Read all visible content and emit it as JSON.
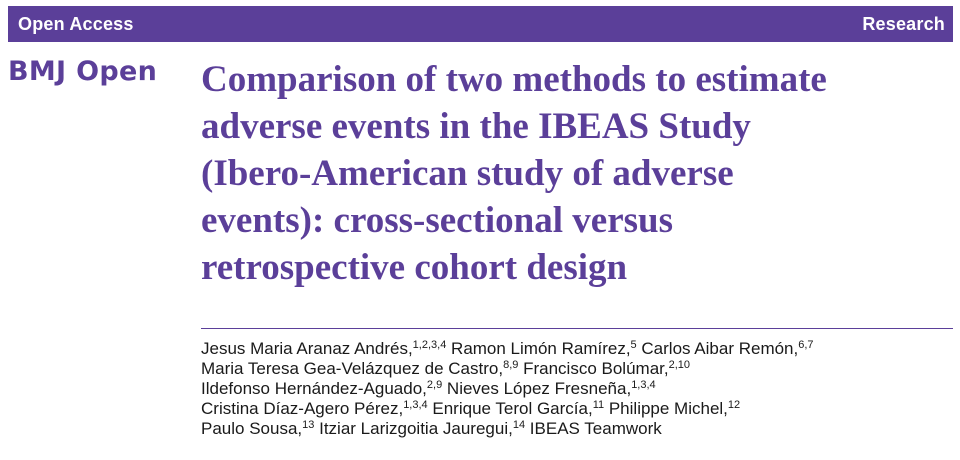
{
  "header": {
    "left_label": "Open Access",
    "right_label": "Research",
    "bar_color": "#5b3f99"
  },
  "journal": {
    "name": "BMJ Open",
    "color": "#5b3f99"
  },
  "article": {
    "title_lines": [
      "Comparison of two methods to estimate",
      "adverse events in the IBEAS Study",
      "(Ibero-American study of adverse",
      "events): cross-sectional versus",
      "retrospective cohort design"
    ]
  },
  "authors": [
    [
      {
        "name": "Jesus Maria Aranaz Andrés,",
        "aff": "1,2,3,4"
      },
      {
        "name": " Ramon Limón Ramírez,",
        "aff": "5"
      },
      {
        "name": " Carlos Aibar Remón,",
        "aff": "6,7"
      }
    ],
    [
      {
        "name": "Maria Teresa Gea-Velázquez de Castro,",
        "aff": "8,9"
      },
      {
        "name": " Francisco Bolúmar,",
        "aff": "2,10"
      }
    ],
    [
      {
        "name": "Ildefonso Hernández-Aguado,",
        "aff": "2,9"
      },
      {
        "name": " Nieves López Fresneña,",
        "aff": "1,3,4"
      }
    ],
    [
      {
        "name": "Cristina Díaz-Agero Pérez,",
        "aff": "1,3,4"
      },
      {
        "name": " Enrique Terol García,",
        "aff": "11"
      },
      {
        "name": " Philippe Michel,",
        "aff": "12"
      }
    ],
    [
      {
        "name": "Paulo Sousa,",
        "aff": "13"
      },
      {
        "name": " Itziar Larizgoitia Jauregui,",
        "aff": "14"
      },
      {
        "name": " IBEAS Teamwork",
        "aff": ""
      }
    ]
  ]
}
